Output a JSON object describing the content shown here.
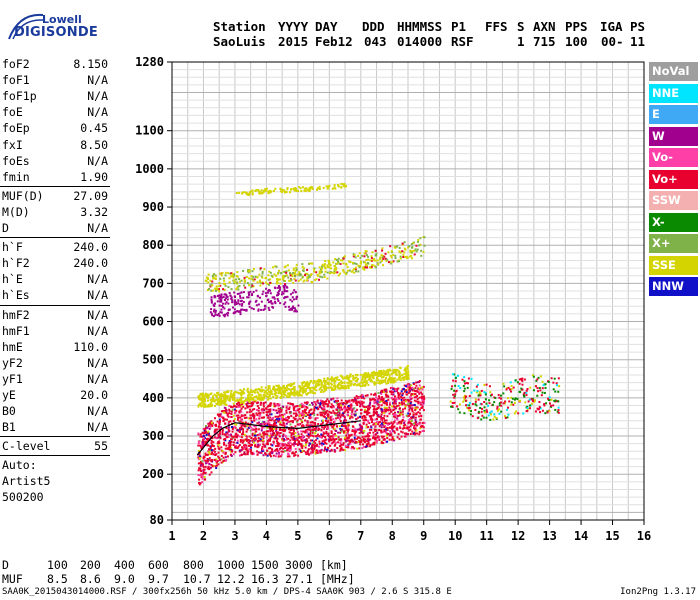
{
  "logo": {
    "top": "Lowell",
    "bottom": "DIGISONDE"
  },
  "header": {
    "labels": [
      "Station",
      "YYYY",
      "DAY",
      "DDD",
      "HHMMSS",
      "P1",
      "FFS",
      "S",
      "AXN",
      "PPS",
      "IGA",
      "PS"
    ],
    "values": [
      "SaoLuis",
      "2015",
      "Feb12",
      "043",
      "014000",
      "RSF",
      "",
      "1",
      "715",
      "100",
      "00-",
      "11"
    ]
  },
  "params_group1": [
    {
      "k": "foF2",
      "v": "8.150"
    },
    {
      "k": "foF1",
      "v": "N/A"
    },
    {
      "k": "foF1p",
      "v": "N/A"
    },
    {
      "k": "foE",
      "v": "N/A"
    },
    {
      "k": "foEp",
      "v": "0.45"
    },
    {
      "k": "fxI",
      "v": "8.50"
    },
    {
      "k": "foEs",
      "v": "N/A"
    },
    {
      "k": "fmin",
      "v": "1.90"
    }
  ],
  "params_group2": [
    {
      "k": "MUF(D)",
      "v": "27.09"
    },
    {
      "k": "M(D)",
      "v": "3.32"
    },
    {
      "k": "D",
      "v": "N/A"
    }
  ],
  "params_group3": [
    {
      "k": "h`F",
      "v": "240.0"
    },
    {
      "k": "h`F2",
      "v": "240.0"
    },
    {
      "k": "h`E",
      "v": "N/A"
    },
    {
      "k": "h`Es",
      "v": "N/A"
    }
  ],
  "params_group4": [
    {
      "k": "hmF2",
      "v": "N/A"
    },
    {
      "k": "hmF1",
      "v": "N/A"
    },
    {
      "k": "hmE",
      "v": "110.0"
    },
    {
      "k": "yF2",
      "v": "N/A"
    },
    {
      "k": "yF1",
      "v": "N/A"
    },
    {
      "k": "yE",
      "v": "20.0"
    },
    {
      "k": "B0",
      "v": "N/A"
    },
    {
      "k": "B1",
      "v": "N/A"
    }
  ],
  "c_level": {
    "k": "C-level",
    "v": "55"
  },
  "autoscale": [
    "Auto:",
    "Artist5",
    "500200"
  ],
  "legend": [
    {
      "label": "NoVal",
      "color": "#9e9e9e"
    },
    {
      "label": "NNE",
      "color": "#00e5ff"
    },
    {
      "label": "E",
      "color": "#3fa9f5"
    },
    {
      "label": "W",
      "color": "#a1008f"
    },
    {
      "label": "Vo-",
      "color": "#ff3fa8"
    },
    {
      "label": "Vo+",
      "color": "#e8002f"
    },
    {
      "label": "SSW",
      "color": "#f4b0b0"
    },
    {
      "label": "X-",
      "color": "#0a8a00"
    },
    {
      "label": "X+",
      "color": "#7fb34a"
    },
    {
      "label": "SSE",
      "color": "#d4d400"
    },
    {
      "label": "NNW",
      "color": "#1010c8"
    }
  ],
  "muf_table": {
    "row1_label": "D",
    "row1": [
      "100",
      "200",
      "400",
      "600",
      "800",
      "1000",
      "1500",
      "3000",
      "[km]"
    ],
    "row2_label": "MUF",
    "row2": [
      "8.5",
      "8.6",
      "9.0",
      "9.7",
      "10.7",
      "12.2",
      "16.3",
      "27.1",
      "[MHz]"
    ]
  },
  "footer_left": "SAA0K_2015043014000.RSF / 300fx256h 50 kHz 5.0 km / DPS-4 SAA0K 903 / 2.6 S 315.8 E",
  "footer_right": "Ion2Png 1.3.17",
  "chart_data": {
    "type": "scatter",
    "title": "",
    "xlabel": "",
    "ylabel": "",
    "xlim": [
      1,
      16
    ],
    "ylim": [
      80,
      1280
    ],
    "x_ticks": [
      1,
      2,
      3,
      4,
      5,
      6,
      7,
      8,
      9,
      10,
      11,
      12,
      13,
      14,
      15,
      16
    ],
    "y_ticks": [
      80,
      200,
      300,
      400,
      500,
      600,
      700,
      800,
      900,
      1000,
      1100,
      1280
    ],
    "grid": true,
    "series": [
      {
        "id": "O-trace",
        "color_ref": "Vo+",
        "x": [
          1.8,
          2.0,
          2.3,
          2.6,
          3.0,
          3.5,
          4.0,
          4.5,
          5.0,
          5.5,
          6.0,
          6.5,
          7.0,
          7.5,
          8.0,
          8.5,
          9.0
        ],
        "y": [
          240,
          255,
          280,
          305,
          320,
          325,
          320,
          318,
          320,
          325,
          330,
          335,
          340,
          350,
          360,
          370,
          380
        ]
      },
      {
        "id": "X-trace",
        "color_ref": "SSE",
        "x": [
          1.8,
          2.5,
          3.0,
          3.5,
          4.0,
          4.5,
          5.0,
          5.5,
          6.0,
          6.5,
          7.0,
          7.5,
          8.0,
          8.5
        ],
        "y": [
          395,
          400,
          405,
          410,
          415,
          420,
          425,
          430,
          440,
          445,
          450,
          455,
          460,
          470
        ]
      },
      {
        "id": "2nd-hop",
        "color_ref": "SSE",
        "x": [
          2.0,
          2.5,
          3.0,
          3.5,
          4.0,
          4.5,
          5.0,
          5.5,
          6.0,
          7.0,
          8.0,
          9.0
        ],
        "y": [
          700,
          705,
          710,
          715,
          720,
          725,
          730,
          730,
          740,
          760,
          780,
          800
        ]
      },
      {
        "id": "3rd-hop",
        "color_ref": "SSE",
        "x": [
          3.0,
          3.5,
          4.0,
          4.5,
          5.0,
          5.5,
          6.0,
          6.5
        ],
        "y": [
          940,
          940,
          945,
          945,
          950,
          950,
          955,
          960
        ]
      },
      {
        "id": "W-echoes",
        "color_ref": "W",
        "x": [
          2.2,
          3.0,
          4.0,
          4.5,
          5.0
        ],
        "y": [
          640,
          650,
          660,
          670,
          650
        ]
      },
      {
        "id": "scatter-high-f",
        "color_ref": "Vo+",
        "x": [
          9.8,
          10.2,
          10.6,
          11.0,
          12.5,
          13.3
        ],
        "y": [
          420,
          410,
          400,
          390,
          415,
          405
        ]
      }
    ],
    "scaled_line": {
      "x": [
        1.8,
        2.0,
        2.3,
        2.6,
        3.0,
        3.5,
        4.0,
        4.5,
        5.0,
        5.5,
        6.0,
        6.5,
        7.0
      ],
      "y": [
        250,
        270,
        300,
        320,
        335,
        330,
        325,
        322,
        320,
        325,
        330,
        335,
        340
      ]
    }
  }
}
